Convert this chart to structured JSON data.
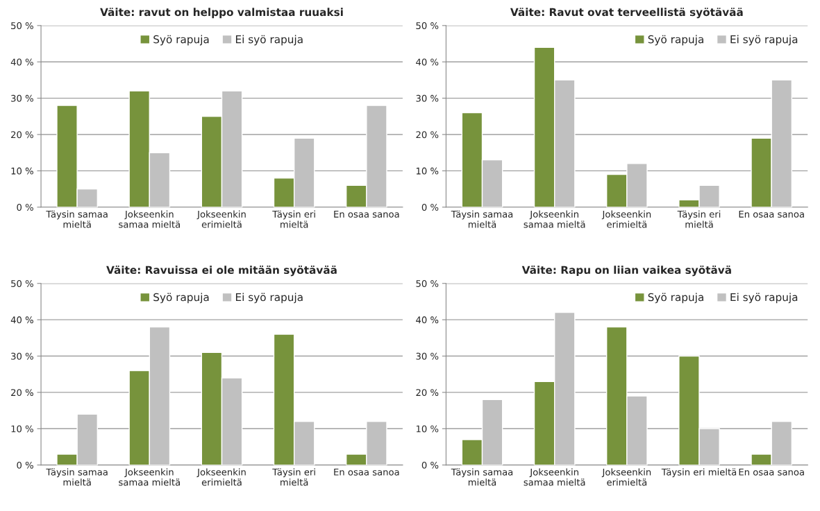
{
  "chart_data": [
    {
      "type": "bar",
      "title": "Väite: ravut on helppo valmistaa ruuaksi",
      "categories": [
        "Täysin samaa\nmieltä",
        "Jokseenkin\nsamaa mieltä",
        "Jokseenkin\nerimieltä",
        "Täysin eri\nmieltä",
        "En osaa sanoa"
      ],
      "series": [
        {
          "name": "Syö rapuja",
          "color": "#77933c",
          "values": [
            28,
            32,
            25,
            8,
            6
          ]
        },
        {
          "name": "Ei syö rapuja",
          "color": "#c0c0c0",
          "values": [
            5,
            15,
            32,
            19,
            28
          ]
        }
      ],
      "ylim": [
        0,
        50
      ],
      "yticks": [
        {
          "value": 0,
          "label": "0 %"
        },
        {
          "value": 10,
          "label": "10 %"
        },
        {
          "value": 20,
          "label": "20 %"
        },
        {
          "value": 30,
          "label": "30 %"
        },
        {
          "value": 40,
          "label": "40 %"
        },
        {
          "value": 50,
          "label": "50 %"
        }
      ],
      "grid": "y",
      "legend": "top"
    },
    {
      "type": "bar",
      "title": "Väite: Ravut ovat terveellistä syötävää",
      "categories": [
        "Täysin samaa\nmieltä",
        "Jokseenkin\nsamaa mieltä",
        "Jokseenkin\nerimieltä",
        "Täysin eri\nmieltä",
        "En osaa sanoa"
      ],
      "series": [
        {
          "name": "Syö rapuja",
          "color": "#77933c",
          "values": [
            26,
            44,
            9,
            2,
            19
          ]
        },
        {
          "name": "Ei syö rapuja",
          "color": "#c0c0c0",
          "values": [
            13,
            35,
            12,
            6,
            35
          ]
        }
      ],
      "ylim": [
        0,
        50
      ],
      "yticks": [
        {
          "value": 0,
          "label": "0 %"
        },
        {
          "value": 10,
          "label": "10 %"
        },
        {
          "value": 20,
          "label": "20 %"
        },
        {
          "value": 30,
          "label": "30 %"
        },
        {
          "value": 40,
          "label": "40 %"
        },
        {
          "value": 50,
          "label": "50 %"
        }
      ],
      "grid": "y",
      "legend": "top right"
    },
    {
      "type": "bar",
      "title": "Väite: Ravuissa ei ole mitään syötävää",
      "categories": [
        "Täysin samaa\nmieltä",
        "Jokseenkin\nsamaa mieltä",
        "Jokseenkin\nerimieltä",
        "Täysin eri\nmieltä",
        "En osaa sanoa"
      ],
      "series": [
        {
          "name": "Syö rapuja",
          "color": "#77933c",
          "values": [
            3,
            26,
            31,
            36,
            3
          ]
        },
        {
          "name": "Ei syö rapuja",
          "color": "#c0c0c0",
          "values": [
            14,
            38,
            24,
            12,
            12
          ]
        }
      ],
      "ylim": [
        0,
        50
      ],
      "yticks": [
        {
          "value": 0,
          "label": "0 %"
        },
        {
          "value": 10,
          "label": "10 %"
        },
        {
          "value": 20,
          "label": "20 %"
        },
        {
          "value": 30,
          "label": "30 %"
        },
        {
          "value": 40,
          "label": "40 %"
        },
        {
          "value": 50,
          "label": "50 %"
        }
      ],
      "grid": "y",
      "legend": "top"
    },
    {
      "type": "bar",
      "title": "Väite: Rapu on liian vaikea syötävä",
      "categories": [
        "Täysin samaa\nmieltä",
        "Jokseenkin\nsamaa mieltä",
        "Jokseenkin\nerimieltä",
        "Täysin eri mieltä",
        "En osaa sanoa"
      ],
      "series": [
        {
          "name": "Syö rapuja",
          "color": "#77933c",
          "values": [
            7,
            23,
            38,
            30,
            3
          ]
        },
        {
          "name": "Ei syö rapuja",
          "color": "#c0c0c0",
          "values": [
            18,
            42,
            19,
            10,
            12
          ]
        }
      ],
      "ylim": [
        0,
        50
      ],
      "yticks": [
        {
          "value": 0,
          "label": "0 %"
        },
        {
          "value": 10,
          "label": "10 %"
        },
        {
          "value": 20,
          "label": "20 %"
        },
        {
          "value": 30,
          "label": "30 %"
        },
        {
          "value": 40,
          "label": "40 %"
        },
        {
          "value": 50,
          "label": "50 %"
        }
      ],
      "grid": "y",
      "legend": "top right"
    }
  ]
}
